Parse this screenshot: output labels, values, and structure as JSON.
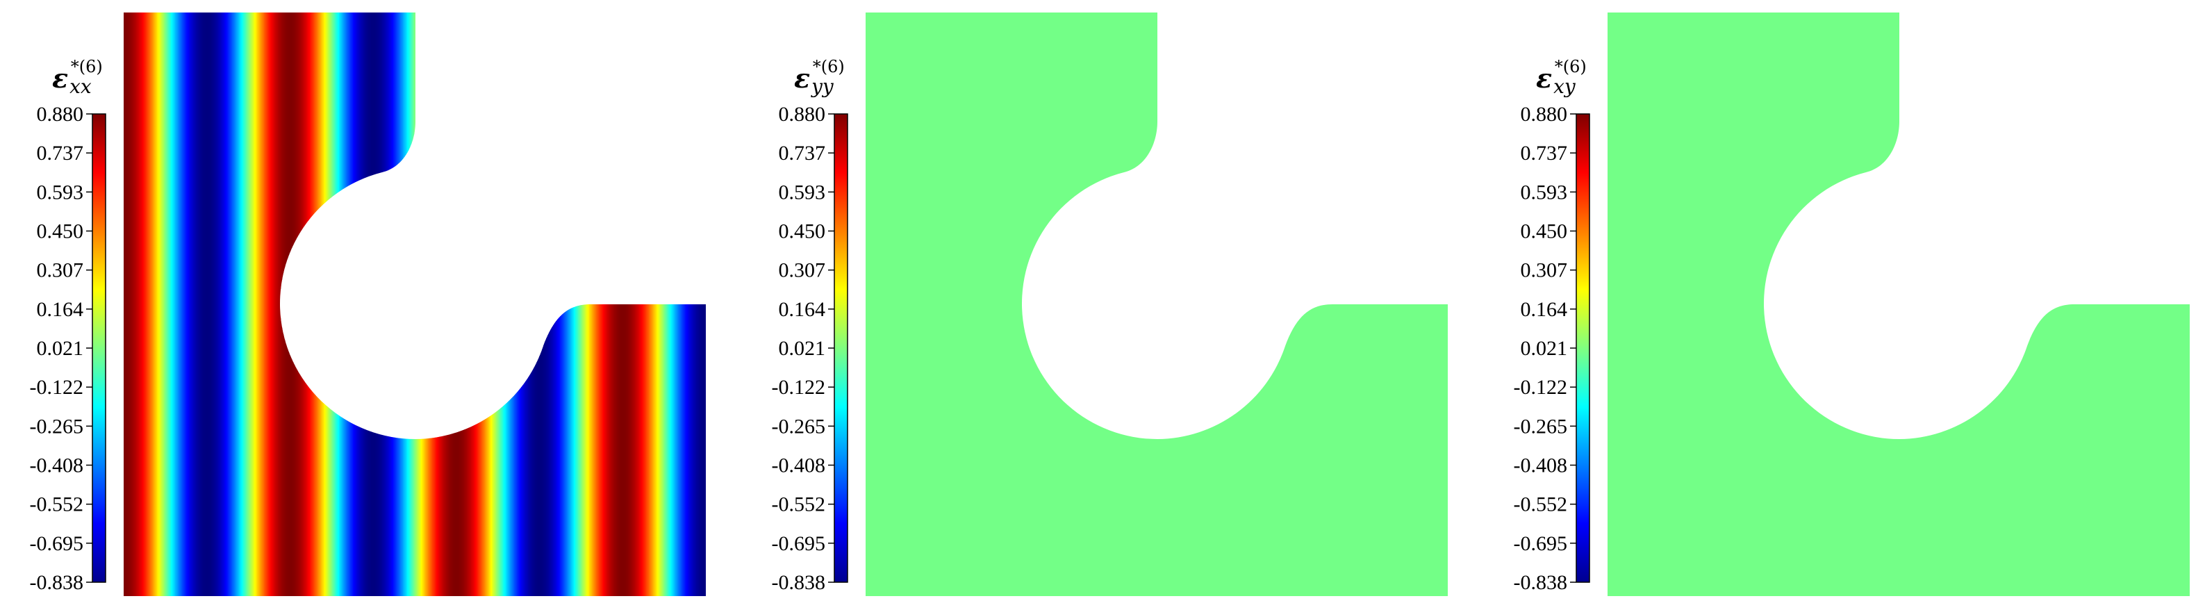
{
  "chart_data": [
    {
      "type": "heatmap",
      "panel": "strain-xx",
      "title": {
        "symbol": "ε",
        "subscript": "xx",
        "superscript": "*(6)"
      },
      "colorbar": {
        "range": [
          -0.838,
          0.88
        ],
        "colormap": "jet",
        "ticks": [
          "0.880",
          "0.737",
          "0.593",
          "0.450",
          "0.307",
          "0.164",
          "0.021",
          "-0.122",
          "-0.265",
          "-0.408",
          "-0.552",
          "-0.695",
          "-0.838"
        ]
      },
      "field": {
        "pattern": "cos(wave_number*x)",
        "wave_number": 6,
        "min": -0.838,
        "max": 0.88
      }
    },
    {
      "type": "heatmap",
      "panel": "strain-yy",
      "title": {
        "symbol": "ε",
        "subscript": "yy",
        "superscript": "*(6)"
      },
      "colorbar": {
        "range": [
          -0.838,
          0.88
        ],
        "colormap": "jet",
        "ticks": [
          "0.880",
          "0.737",
          "0.593",
          "0.450",
          "0.307",
          "0.164",
          "0.021",
          "-0.122",
          "-0.265",
          "-0.408",
          "-0.552",
          "-0.695",
          "-0.838"
        ]
      },
      "field": {
        "pattern": "uniform",
        "value": 0,
        "fill": "#73ff87"
      }
    },
    {
      "type": "heatmap",
      "panel": "strain-xy",
      "title": {
        "symbol": "ε",
        "subscript": "xy",
        "superscript": "*(6)"
      },
      "colorbar": {
        "range": [
          -0.838,
          0.88
        ],
        "colormap": "jet",
        "ticks": [
          "0.880",
          "0.737",
          "0.593",
          "0.450",
          "0.307",
          "0.164",
          "0.021",
          "-0.122",
          "-0.265",
          "-0.408",
          "-0.552",
          "-0.695",
          "-0.838"
        ]
      },
      "field": {
        "pattern": "uniform",
        "value": 0,
        "fill": "#73ff87"
      }
    }
  ]
}
